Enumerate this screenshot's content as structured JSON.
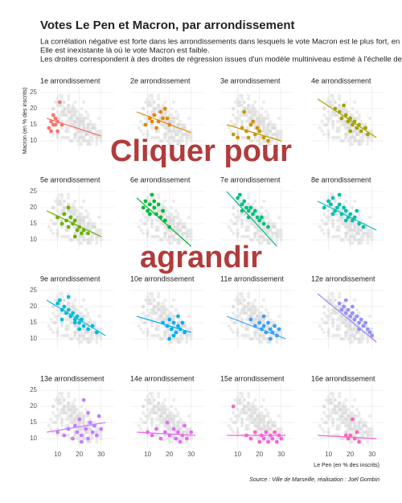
{
  "chart_data": {
    "type": "scatter",
    "title": "Votes Le Pen et Macron, par arrondissement",
    "subtitle": [
      "La corrélation négative est forte dans les arrondissements dans lesquels le vote Macron est le plus fort, en moyenne.",
      "Elle est inexistante là où le vote Macron est faible.",
      "Les droites correspondent à des droites de régression issues d'un modèle multiniveau estimé à l'échelle de la ville."
    ],
    "x_label": "Le Pen (en % des inscrits)",
    "y_label": "Macron (en % des inscrits)",
    "source": "Source : Ville de Marseille, réalisation : Joël Gombin",
    "overlay": [
      "Cliquer pour",
      "agrandir"
    ],
    "xlim": [
      2,
      36
    ],
    "xticks": [
      10,
      20,
      30
    ],
    "ylim": [
      7,
      27
    ],
    "yticks": [
      10,
      15,
      20,
      25
    ],
    "grid": true,
    "panels": [
      {
        "name": "1e arrondissement",
        "color": "#f8766d",
        "x": [
          6,
          7,
          8,
          9,
          10,
          11,
          12,
          8,
          10,
          7,
          9
        ],
        "y": [
          14,
          16,
          15,
          17,
          16,
          22,
          15,
          18,
          13,
          13,
          15
        ],
        "trend_x": [
          5,
          30
        ],
        "trend_y": [
          17,
          11.5
        ]
      },
      {
        "name": "2e arrondissement",
        "color": "#e58700",
        "x": [
          9,
          11,
          13,
          15,
          16,
          17,
          18,
          20,
          14,
          12,
          19
        ],
        "y": [
          15,
          17,
          18,
          16,
          19,
          17,
          20,
          15,
          14,
          16,
          17
        ],
        "trend_x": [
          5,
          30
        ],
        "trend_y": [
          19,
          12.5
        ]
      },
      {
        "name": "3e arrondissement",
        "color": "#c99800",
        "x": [
          8,
          10,
          12,
          14,
          15,
          16,
          18,
          20,
          22,
          24,
          13,
          17,
          19
        ],
        "y": [
          12,
          11,
          14,
          13,
          11,
          15,
          12,
          13,
          11,
          10,
          19,
          16,
          14
        ],
        "trend_x": [
          5,
          30
        ],
        "trend_y": [
          15,
          10
        ]
      },
      {
        "name": "4e arrondissement",
        "color": "#a3a500",
        "x": [
          13,
          15,
          16,
          18,
          19,
          20,
          21,
          22,
          23,
          24,
          25,
          27,
          28,
          17,
          20
        ],
        "y": [
          20,
          19,
          17,
          18,
          16,
          17,
          15,
          16,
          14,
          15,
          13,
          14,
          12,
          21,
          13
        ],
        "trend_x": [
          5,
          32
        ],
        "trend_y": [
          23,
          11
        ]
      },
      {
        "name": "5e arrondissement",
        "color": "#6bb100",
        "x": [
          10,
          12,
          13,
          14,
          15,
          16,
          17,
          18,
          19,
          20,
          21,
          22,
          24,
          15,
          18
        ],
        "y": [
          17,
          15,
          18,
          16,
          14,
          17,
          15,
          16,
          13,
          14,
          12,
          13,
          12,
          20,
          11
        ],
        "trend_x": [
          5,
          30
        ],
        "trend_y": [
          19,
          11
        ]
      },
      {
        "name": "6e arrondissement",
        "color": "#00ba38",
        "x": [
          8,
          9,
          10,
          11,
          12,
          13,
          14,
          15,
          16,
          17,
          18,
          20,
          11,
          13
        ],
        "y": [
          20,
          22,
          19,
          21,
          24,
          20,
          18,
          21,
          17,
          19,
          16,
          14,
          18,
          22
        ],
        "trend_x": [
          5,
          30
        ],
        "trend_y": [
          23,
          8
        ]
      },
      {
        "name": "7e arrondissement",
        "color": "#00bf7d",
        "x": [
          10,
          11,
          12,
          13,
          14,
          15,
          16,
          17,
          18,
          19,
          20,
          21,
          22,
          24,
          12,
          15
        ],
        "y": [
          23,
          24,
          21,
          22,
          20,
          19,
          20,
          18,
          19,
          17,
          16,
          17,
          15,
          14,
          19,
          17
        ],
        "trend_x": [
          5,
          28
        ],
        "trend_y": [
          25,
          8
        ]
      },
      {
        "name": "8e arrondissement",
        "color": "#00c0af",
        "x": [
          8,
          10,
          11,
          12,
          13,
          14,
          15,
          16,
          17,
          18,
          19,
          20,
          21,
          22,
          24,
          26,
          12,
          15,
          18,
          23
        ],
        "y": [
          20,
          22,
          21,
          23,
          19,
          20,
          21,
          18,
          20,
          19,
          17,
          18,
          16,
          17,
          15,
          14,
          18,
          24,
          16,
          19
        ],
        "trend_x": [
          5,
          32
        ],
        "trend_y": [
          22,
          13
        ]
      },
      {
        "name": "9e arrondissement",
        "color": "#00bcd8",
        "x": [
          10,
          11,
          12,
          13,
          14,
          15,
          16,
          17,
          18,
          19,
          20,
          21,
          22,
          24,
          26,
          28,
          12,
          15,
          18,
          20
        ],
        "y": [
          21,
          22,
          19,
          20,
          18,
          19,
          17,
          18,
          16,
          17,
          15,
          16,
          14,
          13,
          14,
          12,
          16,
          23,
          15,
          13
        ],
        "trend_x": [
          5,
          32
        ],
        "trend_y": [
          22,
          11
        ]
      },
      {
        "name": "10e arrondissement",
        "color": "#00b0f6",
        "x": [
          17,
          19,
          20,
          21,
          22,
          23,
          24,
          25,
          26,
          27,
          22,
          24,
          20
        ],
        "y": [
          15,
          14,
          16,
          13,
          15,
          12,
          14,
          13,
          15,
          12,
          11,
          17,
          10
        ],
        "trend_x": [
          5,
          30
        ],
        "trend_y": [
          17,
          12
        ]
      },
      {
        "name": "11e arrondissement",
        "color": "#35a2ff",
        "x": [
          16,
          18,
          20,
          21,
          22,
          23,
          24,
          25,
          26,
          27,
          28,
          29,
          22,
          25
        ],
        "y": [
          16,
          14,
          15,
          13,
          14,
          12,
          15,
          13,
          12,
          14,
          11,
          13,
          17,
          10
        ],
        "trend_x": [
          5,
          32
        ],
        "trend_y": [
          17,
          10
        ]
      },
      {
        "name": "12e arrondissement",
        "color": "#9590ff",
        "x": [
          15,
          16,
          17,
          18,
          19,
          20,
          21,
          22,
          23,
          24,
          25,
          26,
          27,
          28,
          29,
          30,
          18,
          21,
          24
        ],
        "y": [
          21,
          19,
          20,
          18,
          19,
          17,
          18,
          16,
          17,
          15,
          16,
          14,
          15,
          13,
          12,
          11,
          22,
          20,
          13
        ],
        "trend_x": [
          5,
          32
        ],
        "trend_y": [
          24,
          9
        ]
      },
      {
        "name": "13e arrondissement",
        "color": "#c77cff",
        "x": [
          10,
          13,
          15,
          17,
          18,
          19,
          20,
          21,
          22,
          23,
          24,
          25,
          26,
          27,
          28,
          29,
          30,
          21,
          24
        ],
        "y": [
          12,
          11,
          13,
          10,
          14,
          12,
          16,
          11,
          22,
          13,
          10,
          15,
          12,
          14,
          11,
          17,
          13,
          9,
          18
        ],
        "trend_x": [
          5,
          32
        ],
        "trend_y": [
          12,
          15
        ]
      },
      {
        "name": "14e arrondissement",
        "color": "#e76bf3",
        "x": [
          10,
          12,
          14,
          16,
          18,
          20,
          22,
          23,
          24,
          25,
          26,
          27,
          28,
          30,
          19
        ],
        "y": [
          12,
          11,
          13,
          10,
          12,
          11,
          13,
          10,
          12,
          9,
          11,
          14,
          10,
          12,
          15
        ],
        "trend_x": [
          5,
          32
        ],
        "trend_y": [
          12,
          11
        ]
      },
      {
        "name": "15e arrondissement",
        "color": "#fa62db",
        "x": [
          8,
          14,
          16,
          18,
          20,
          21,
          22,
          23,
          24,
          25,
          26,
          27,
          28,
          29,
          30
        ],
        "y": [
          20,
          11,
          10,
          12,
          9,
          11,
          10,
          12,
          9,
          11,
          10,
          12,
          9,
          11,
          10
        ],
        "trend_x": [
          5,
          32
        ],
        "trend_y": [
          11,
          11
        ]
      },
      {
        "name": "16e arrondissement",
        "color": "#ff62bc",
        "x": [
          18,
          19,
          20,
          21,
          22,
          23,
          24
        ],
        "y": [
          11,
          10,
          11,
          16,
          10,
          12,
          9
        ],
        "trend_x": [
          5,
          32
        ],
        "trend_y": [
          11,
          10
        ]
      }
    ]
  }
}
